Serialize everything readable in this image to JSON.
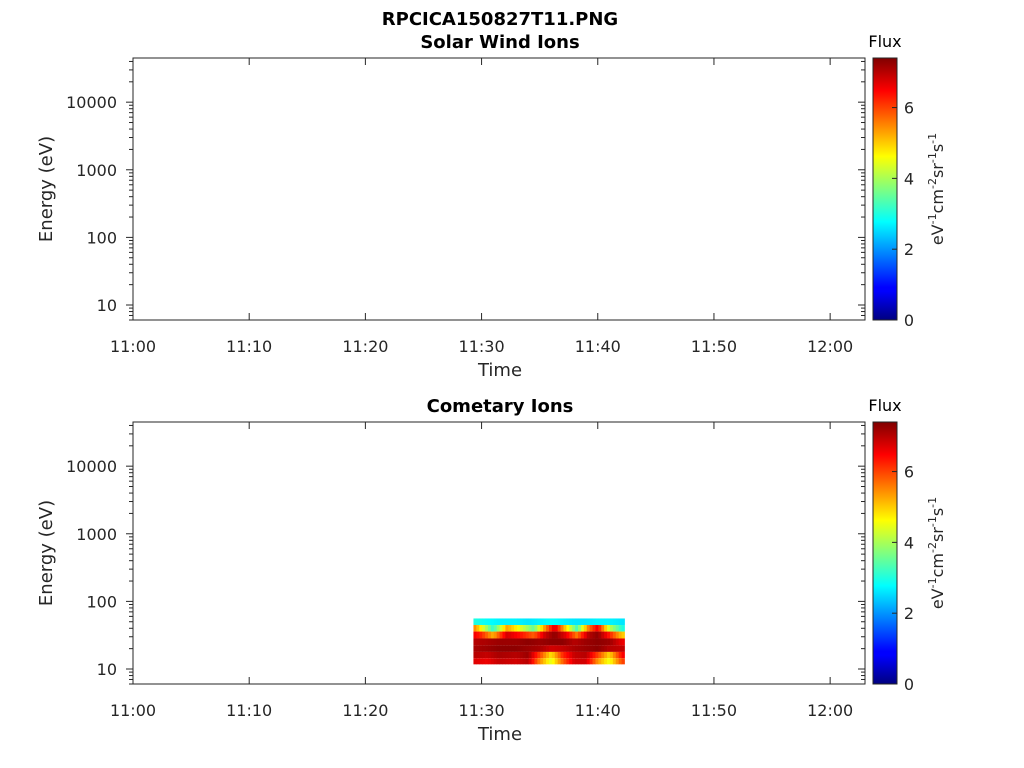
{
  "figure": {
    "filename": "RPCICA150827T11.PNG"
  },
  "chart_data": [
    {
      "type": "heatmap",
      "title": "Solar Wind Ions",
      "xlabel": "Time",
      "ylabel": "Energy (eV)",
      "x_ticks": [
        "11:00",
        "11:10",
        "11:20",
        "11:30",
        "11:40",
        "11:50",
        "12:00"
      ],
      "x_range_minutes_from_11_00": [
        0,
        63
      ],
      "y_scale": "log",
      "y_ticks": [
        "10",
        "100",
        "1000",
        "10000"
      ],
      "y_range": [
        6,
        45000
      ],
      "colorbar": {
        "title": "Flux",
        "label": "eV-1cm-2sr-1s-1",
        "ticks": [
          "0",
          "2",
          "4",
          "6"
        ],
        "range": [
          0,
          7.4
        ],
        "colormap": "jet"
      },
      "cells": []
    },
    {
      "type": "heatmap",
      "title": "Cometary Ions",
      "xlabel": "Time",
      "ylabel": "Energy (eV)",
      "x_ticks": [
        "11:00",
        "11:10",
        "11:20",
        "11:30",
        "11:40",
        "11:50",
        "12:00"
      ],
      "x_range_minutes_from_11_00": [
        0,
        63
      ],
      "y_scale": "log",
      "y_ticks": [
        "10",
        "100",
        "1000",
        "10000"
      ],
      "y_range": [
        6,
        45000
      ],
      "colorbar": {
        "title": "Flux",
        "label": "eV-1cm-2sr-1s-1",
        "ticks": [
          "0",
          "2",
          "4",
          "6"
        ],
        "range": [
          0,
          7.4
        ],
        "colormap": "jet"
      },
      "time_range": [
        "11:29",
        "11:42"
      ],
      "energy_bins_eV": [
        13,
        16,
        20,
        25,
        32,
        40,
        50
      ],
      "flux_profiles_by_energy": [
        {
          "energy": 50,
          "times": [
            29.3,
            30.5,
            31.5,
            33,
            34,
            35,
            36,
            37,
            38,
            39,
            40,
            41,
            42.1
          ],
          "values": [
            3.0,
            2.8,
            2.7,
            2.7,
            2.6,
            2.7,
            2.8,
            2.7,
            2.6,
            2.6,
            2.7,
            2.7,
            2.6
          ]
        },
        {
          "energy": 40,
          "times": [
            29.3,
            30,
            31,
            32.2,
            33.5,
            34.5,
            35.5,
            36.3,
            37.2,
            38.2,
            39.2,
            40,
            41,
            42.1
          ],
          "values": [
            5.6,
            4.6,
            3.1,
            5.3,
            4.3,
            3.5,
            5.5,
            6.8,
            5.0,
            3.3,
            5.6,
            6.6,
            4.2,
            3.0
          ]
        },
        {
          "energy": 32,
          "times": [
            29.3,
            30,
            31,
            32.2,
            33.5,
            34.5,
            35.5,
            36.3,
            37.2,
            38.2,
            39.2,
            40,
            41,
            42.1
          ],
          "values": [
            6.6,
            6.2,
            5.2,
            6.8,
            6.3,
            5.8,
            6.9,
            7.3,
            6.7,
            5.6,
            7.0,
            7.3,
            6.3,
            5.0
          ]
        },
        {
          "energy": 25,
          "times": [
            29.3,
            30.5,
            31.5,
            33,
            34,
            35,
            36,
            37,
            38,
            39,
            40,
            41,
            42.1
          ],
          "values": [
            7.0,
            7.1,
            7.2,
            7.2,
            7.3,
            7.2,
            7.3,
            7.3,
            7.0,
            7.2,
            7.3,
            7.2,
            6.6
          ]
        },
        {
          "energy": 20,
          "times": [
            29.3,
            30.5,
            31.5,
            33,
            34,
            35,
            36,
            37,
            38,
            39,
            40,
            41,
            42.1
          ],
          "values": [
            7.1,
            7.2,
            7.3,
            7.3,
            7.2,
            7.1,
            6.8,
            6.9,
            7.1,
            7.2,
            7.3,
            7.0,
            6.9
          ]
        },
        {
          "energy": 16,
          "times": [
            29.3,
            30.5,
            31.5,
            33,
            34,
            35,
            36,
            37,
            38,
            39,
            40,
            41,
            42.1
          ],
          "values": [
            7.0,
            6.9,
            7.1,
            7.0,
            7.2,
            6.0,
            4.8,
            6.2,
            6.9,
            7.0,
            6.0,
            4.9,
            6.5
          ]
        },
        {
          "energy": 13,
          "times": [
            29.3,
            30.5,
            31.5,
            33,
            34,
            35,
            36,
            37,
            38,
            39,
            40,
            41,
            42.1
          ],
          "values": [
            6.7,
            6.6,
            6.9,
            6.8,
            7.0,
            5.5,
            4.4,
            5.8,
            6.8,
            6.8,
            5.4,
            4.5,
            6.0
          ]
        }
      ]
    }
  ]
}
